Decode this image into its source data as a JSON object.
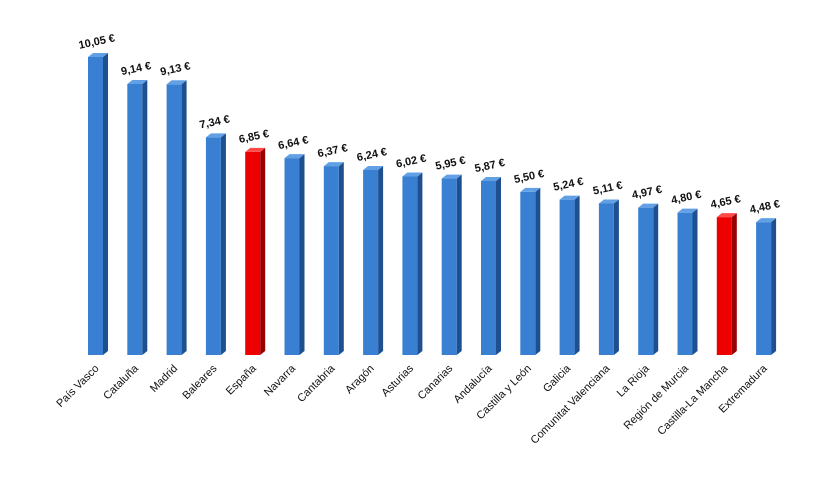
{
  "chart_data": {
    "type": "bar",
    "title": "",
    "xlabel": "",
    "ylabel": "",
    "ylim": [
      0,
      10.05
    ],
    "grid": false,
    "legend": "none",
    "bar_style": "3d-column",
    "colors": {
      "default_front": "#3a80d2",
      "default_side": "#1e4f8f",
      "default_top": "#62a0e6",
      "highlight_front": "#ee0000",
      "highlight_side": "#990000",
      "highlight_top": "#ff4a4a"
    },
    "categories": [
      "País Vasco",
      "Cataluña",
      "Madrid",
      "Baleares",
      "España",
      "Navarra",
      "Cantabria",
      "Aragón",
      "Asturias",
      "Canarias",
      "Andalucía",
      "Castilla y León",
      "Galicia",
      "Comunitat Valenciana",
      "La Rioja",
      "Región de Murcia",
      "Castilla-La Mancha",
      "Extremadura"
    ],
    "values": [
      10.05,
      9.14,
      9.13,
      7.34,
      6.85,
      6.64,
      6.37,
      6.24,
      6.02,
      5.95,
      5.87,
      5.5,
      5.24,
      5.11,
      4.97,
      4.8,
      4.65,
      4.48
    ],
    "data_labels": [
      "10,05 €",
      "9,14 €",
      "9,13 €",
      "7,34 €",
      "6,85 €",
      "6,64 €",
      "6,37 €",
      "6,24 €",
      "6,02 €",
      "5,95 €",
      "5,87 €",
      "5,50 €",
      "5,24 €",
      "5,11 €",
      "4,97 €",
      "4,80 €",
      "4,65 €",
      "4,48 €"
    ],
    "highlighted": [
      "España",
      "Castilla-La Mancha"
    ]
  }
}
